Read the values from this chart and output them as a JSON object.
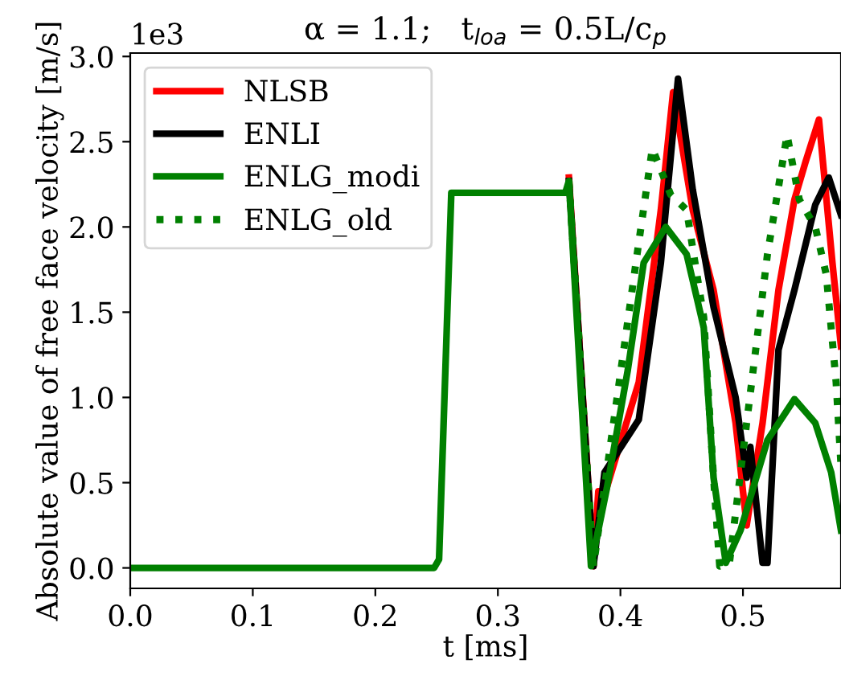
{
  "chart_data": {
    "type": "line",
    "title": "α = 1.1;   t$_{loa}$ = 0.5L/c$_{p}$",
    "xlabel": "t [ms]",
    "ylabel": "Absolute value of free face velocity [m/s]",
    "annotations": [
      "1e3"
    ],
    "xlim": [
      0,
      0.58
    ],
    "ylim": [
      -0.12,
      3.02
    ],
    "xticks": [
      {
        "value": 0,
        "label": "0.0"
      },
      0.1,
      0.2,
      0.3,
      0.4,
      0.5
    ],
    "yticks": [
      {
        "value": 0,
        "label": "0.0"
      },
      0.5,
      {
        "value": 1,
        "label": "1.0"
      },
      1.5,
      {
        "value": 2,
        "label": "2.0"
      },
      2.5,
      {
        "value": 3,
        "label": "3.0"
      }
    ],
    "grid": false,
    "legend": "top left",
    "series": [
      {
        "name": "NLSB",
        "color": "#ff0000",
        "line_style": "solid",
        "x": [
          0.358,
          0.378,
          0.382,
          0.388,
          0.415,
          0.433,
          0.443,
          0.459,
          0.476,
          0.494,
          0.503,
          0.516,
          0.529,
          0.542,
          0.551,
          0.562,
          0.573,
          0.58
        ],
        "values": [
          2.29,
          0.01,
          0.45,
          0.45,
          1.09,
          2.1,
          2.79,
          2.1,
          1.63,
          0.85,
          0.25,
          0.85,
          1.63,
          2.16,
          2.38,
          2.63,
          1.79,
          1.3
        ]
      },
      {
        "name": "ENLI",
        "color": "#000000",
        "line_style": "solid",
        "x": [
          0.358,
          0.378,
          0.387,
          0.415,
          0.433,
          0.447,
          0.459,
          0.476,
          0.494,
          0.503,
          0.506,
          0.516,
          0.52,
          0.529,
          0.542,
          0.559,
          0.57,
          0.58
        ],
        "values": [
          2.27,
          0.01,
          0.56,
          0.87,
          1.79,
          2.87,
          2.22,
          1.53,
          1.0,
          0.53,
          0.71,
          0.03,
          0.03,
          1.28,
          1.63,
          2.13,
          2.29,
          2.07
        ]
      },
      {
        "name": "ENLG_modi",
        "color": "#008000",
        "line_style": "solid",
        "x": [
          0,
          0.248,
          0.252,
          0.262,
          0.3,
          0.355,
          0.358,
          0.376,
          0.389,
          0.406,
          0.419,
          0.437,
          0.454,
          0.468,
          0.476,
          0.486,
          0.498,
          0.52,
          0.542,
          0.559,
          0.572,
          0.58
        ],
        "values": [
          0,
          0,
          0.05,
          2.2,
          2.2,
          2.2,
          2.27,
          0.01,
          0.47,
          1.16,
          1.79,
          2.0,
          1.84,
          1.41,
          0.53,
          0.03,
          0.22,
          0.75,
          0.99,
          0.85,
          0.56,
          0.22
        ]
      },
      {
        "name": "ENLG_old",
        "color": "#008000",
        "line_style": "dotted",
        "x": [
          0.358,
          0.378,
          0.415,
          0.426,
          0.441,
          0.454,
          0.468,
          0.476,
          0.481,
          0.489,
          0.503,
          0.52,
          0.536,
          0.546,
          0.559,
          0.568,
          0.576,
          0.58
        ],
        "values": [
          2.27,
          0.01,
          1.91,
          2.46,
          2.19,
          2.1,
          1.47,
          0.53,
          0.01,
          0.03,
          0.85,
          1.84,
          2.54,
          2.16,
          2.0,
          1.72,
          1.09,
          0.6
        ]
      }
    ]
  }
}
